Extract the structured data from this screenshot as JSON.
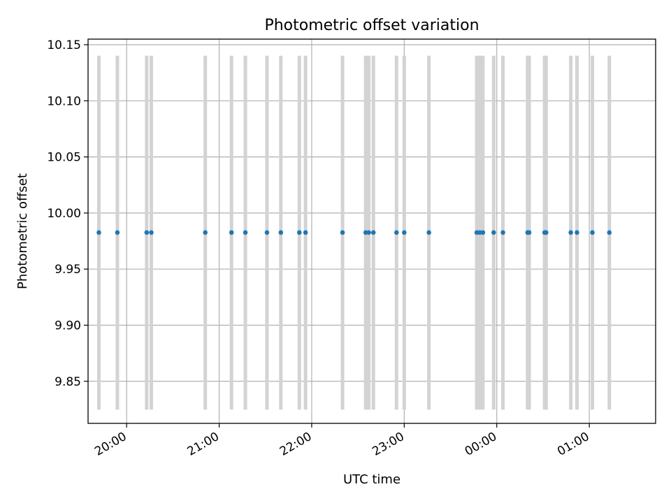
{
  "chart_data": {
    "type": "scatter",
    "title": "Photometric offset variation",
    "xlabel": "UTC time",
    "ylabel": "Photometric offset",
    "ylim": [
      9.8125,
      10.155
    ],
    "xlim": [
      "19:35",
      "01:43"
    ],
    "grid": true,
    "y_ticks": [
      "9.85",
      "9.90",
      "9.95",
      "10.00",
      "10.05",
      "10.10",
      "10.15"
    ],
    "x_ticks": [
      "20:00",
      "21:00",
      "22:00",
      "23:00",
      "00:00",
      "01:00"
    ],
    "error_bars": {
      "color": "#d3d3d3",
      "low": 9.8247,
      "high": 10.1402
    },
    "series": [
      {
        "color": "#1f77b4",
        "x": [
          "19:42",
          "19:54",
          "20:13",
          "20:16",
          "20:51",
          "21:08",
          "21:17",
          "21:31",
          "21:40",
          "21:52",
          "21:56",
          "22:20",
          "22:35",
          "22:37",
          "22:40",
          "22:55",
          "23:00",
          "23:16",
          "23:47",
          "23:49",
          "23:51",
          "23:58",
          "00:04",
          "00:20",
          "00:21",
          "00:31",
          "00:32",
          "00:48",
          "00:52",
          "01:02",
          "01:13"
        ],
        "y": [
          9.9826,
          9.9826,
          9.9826,
          9.9826,
          9.9826,
          9.9826,
          9.9826,
          9.9826,
          9.9826,
          9.9826,
          9.9826,
          9.9826,
          9.9826,
          9.9826,
          9.9826,
          9.9826,
          9.9826,
          9.9826,
          9.9826,
          9.9826,
          9.9826,
          9.9826,
          9.9826,
          9.9826,
          9.9826,
          9.9826,
          9.9826,
          9.9826,
          9.9826,
          9.9826,
          9.9826
        ]
      }
    ]
  }
}
